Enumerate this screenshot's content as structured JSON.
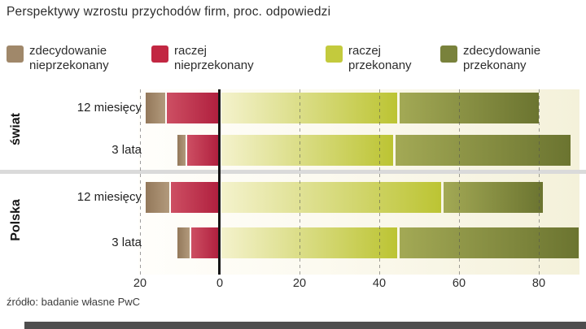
{
  "chart_data": {
    "type": "bar",
    "subtype": "diverging-stacked-horizontal",
    "title": "Perspektywy wzrostu przychodów firm, proc. odpowiedzi",
    "source": "źródło: badanie własne PwC",
    "legend_position": "top",
    "grid": "dashed-vertical",
    "axis": {
      "range": [
        -20,
        90
      ],
      "ticks": [
        {
          "value": -20,
          "label": "20"
        },
        {
          "value": 0,
          "label": "0"
        },
        {
          "value": 20,
          "label": "20"
        },
        {
          "value": 40,
          "label": "40"
        },
        {
          "value": 60,
          "label": "60"
        },
        {
          "value": 80,
          "label": "80"
        }
      ]
    },
    "series": [
      {
        "key": "zdecydowanie_nieprzekonany",
        "label_line1": "zdecydowanie",
        "label_line2": "nieprzekonany",
        "side": "negative",
        "swatch": "#a0886a",
        "grad_from": "#93785a",
        "grad_to": "#b29a7c"
      },
      {
        "key": "raczej_nieprzekonany",
        "label_line1": "raczej",
        "label_line2": "nieprzekonany",
        "side": "negative",
        "swatch": "#c22742",
        "grad_from": "#cd4f63",
        "grad_to": "#b01f3e"
      },
      {
        "key": "raczej_przekonany",
        "label_line1": "raczej",
        "label_line2": "przekonany",
        "side": "positive",
        "swatch": "#c3ca3d",
        "grad_from": "#f4f2cc",
        "grad_to": "#bcc433"
      },
      {
        "key": "zdecydowanie_przekonany",
        "label_line1": "zdecydowanie",
        "label_line2": "przekonany",
        "side": "positive",
        "swatch": "#79823c",
        "grad_from": "#a3a955",
        "grad_to": "#6b7430"
      }
    ],
    "groups": [
      {
        "label": "świat",
        "rows": [
          {
            "label": "12 miesięcy",
            "values": [
              5,
              13,
              44,
              35
            ]
          },
          {
            "label": "3 lata",
            "values": [
              2,
              8,
              43,
              44
            ]
          }
        ]
      },
      {
        "label": "Polska",
        "rows": [
          {
            "label": "12 miesięcy",
            "values": [
              6,
              12,
              55,
              25
            ]
          },
          {
            "label": "3 lata",
            "values": [
              3,
              7,
              44,
              45
            ]
          }
        ]
      }
    ]
  }
}
